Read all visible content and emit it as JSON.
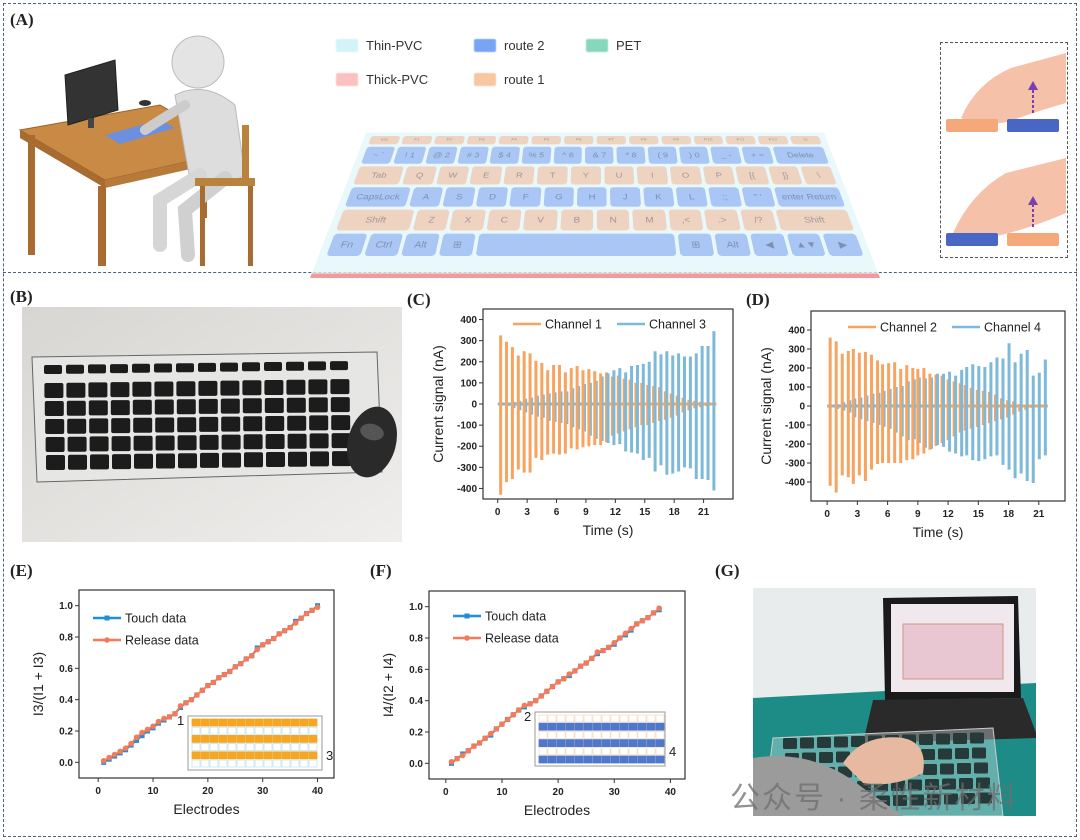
{
  "panels": {
    "a": "(A)",
    "b": "(B)",
    "c": "(C)",
    "d": "(D)",
    "e": "(E)",
    "f": "(F)",
    "g": "(G)"
  },
  "legend_a": [
    {
      "label": "Thin-PVC",
      "color": "#d4f3f8"
    },
    {
      "label": "route 2",
      "color": "#78a4f4"
    },
    {
      "label": "PET",
      "color": "#86d8bd"
    },
    {
      "label": "Thick-PVC",
      "color": "#fbc1c1"
    },
    {
      "label": "route 1",
      "color": "#f8c7a1"
    }
  ],
  "keyboard_rows": [
    {
      "route": "o",
      "keys": [
        "esc",
        "F1",
        "F2",
        "F3",
        "F4",
        "F5",
        "F6",
        "F7",
        "F8",
        "F9",
        "F10",
        "F11",
        "F12",
        "⏻"
      ]
    },
    {
      "route": "b",
      "keys": [
        "~ `",
        "! 1",
        "@ 2",
        "# 3",
        "$ 4",
        "% 5",
        "^ 6",
        "& 7",
        "* 8",
        "( 9",
        ") 0",
        "_ -",
        "+ =",
        "Delete"
      ]
    },
    {
      "route": "o",
      "keys": [
        "Tab",
        "Q",
        "W",
        "E",
        "R",
        "T",
        "Y",
        "U",
        "I",
        "O",
        "P",
        "[{",
        "]}",
        "\\"
      ]
    },
    {
      "route": "b",
      "keys": [
        "CapsLock",
        "A",
        "S",
        "D",
        "F",
        "G",
        "H",
        "J",
        "K",
        "L",
        ":;",
        "\" '",
        "enter Return"
      ]
    },
    {
      "route": "o",
      "keys": [
        "Shift",
        "Z",
        "X",
        "C",
        "V",
        "B",
        "N",
        "M",
        ",<",
        ".>",
        "/?",
        "Shift"
      ]
    },
    {
      "route": "b",
      "keys": [
        "Fn",
        "Ctrl",
        "Alt",
        "⊞",
        " ",
        "⊞",
        "Alt",
        "◀",
        "▲▼",
        "▶"
      ]
    }
  ],
  "watermark": "公众号 · 柔性新材料",
  "chart_data": [
    {
      "id": "C",
      "type": "bar",
      "subtype": "pulse-signal",
      "xlabel": "Time (s)",
      "ylabel": "Current signal (nA)",
      "xlim": [
        -1.5,
        24
      ],
      "ylim": [
        -450,
        450
      ],
      "xticks": [
        0,
        3,
        6,
        9,
        12,
        15,
        18,
        21
      ],
      "yticks": [
        -400,
        -300,
        -200,
        -100,
        0,
        100,
        200,
        300,
        400
      ],
      "legend": "top-center",
      "grid": false,
      "time": [
        0.3,
        0.9,
        1.5,
        2.1,
        2.7,
        3.3,
        3.9,
        4.5,
        5.1,
        5.7,
        6.3,
        6.9,
        7.5,
        8.1,
        8.7,
        9.3,
        9.9,
        10.5,
        11.1,
        11.7,
        12.3,
        12.9,
        13.5,
        14.1,
        14.7,
        15.3,
        15.9,
        16.5,
        17.1,
        17.7,
        18.3,
        18.9,
        19.5,
        20.1,
        20.7,
        21.3,
        21.9
      ],
      "series": [
        {
          "name": "Channel 1",
          "color": "#f7a461",
          "pos": [
            325,
            295,
            270,
            230,
            250,
            240,
            205,
            195,
            160,
            185,
            185,
            150,
            170,
            180,
            160,
            165,
            155,
            145,
            150,
            130,
            135,
            120,
            115,
            100,
            100,
            90,
            85,
            80,
            60,
            50,
            40,
            30,
            20,
            15,
            10,
            5,
            2
          ],
          "neg": [
            -430,
            -370,
            -355,
            -310,
            -325,
            -325,
            -255,
            -265,
            -240,
            -235,
            -240,
            -235,
            -210,
            -215,
            -205,
            -200,
            -195,
            -195,
            -180,
            -150,
            -140,
            -130,
            -120,
            -110,
            -100,
            -100,
            -90,
            -80,
            -75,
            -65,
            -55,
            -40,
            -30,
            -20,
            -15,
            -10,
            -5
          ]
        },
        {
          "name": "Channel 3",
          "color": "#7db9d8",
          "pos": [
            2,
            5,
            10,
            15,
            25,
            30,
            40,
            45,
            50,
            55,
            60,
            60,
            75,
            85,
            95,
            100,
            110,
            130,
            145,
            160,
            170,
            150,
            180,
            185,
            190,
            200,
            250,
            235,
            250,
            230,
            240,
            225,
            225,
            240,
            275,
            275,
            345
          ],
          "neg": [
            -5,
            -10,
            -20,
            -30,
            -40,
            -50,
            -60,
            -65,
            -80,
            -85,
            -90,
            -95,
            -110,
            -120,
            -130,
            -150,
            -165,
            -175,
            -185,
            -195,
            -190,
            -225,
            -230,
            -235,
            -265,
            -255,
            -320,
            -290,
            -335,
            -330,
            -320,
            -300,
            -305,
            -355,
            -355,
            -360,
            -410
          ]
        }
      ]
    },
    {
      "id": "D",
      "type": "bar",
      "subtype": "pulse-signal",
      "xlabel": "Time (s)",
      "ylabel": "Current signal (nA)",
      "xlim": [
        -1.6,
        23.6
      ],
      "ylim": [
        -500,
        500
      ],
      "xticks": [
        0,
        3,
        6,
        9,
        12,
        15,
        18,
        21
      ],
      "yticks": [
        -400,
        -300,
        -200,
        -100,
        0,
        100,
        200,
        300,
        400
      ],
      "legend": "top-center",
      "grid": false,
      "time": [
        0.3,
        0.9,
        1.5,
        2.1,
        2.6,
        3.2,
        3.8,
        4.4,
        5.0,
        5.5,
        6.1,
        6.7,
        7.3,
        7.9,
        8.5,
        9.0,
        9.6,
        10.2,
        10.8,
        11.4,
        12.0,
        12.6,
        13.2,
        13.7,
        14.3,
        14.9,
        15.5,
        16.1,
        16.7,
        17.3,
        17.9,
        18.5,
        19.1,
        19.7,
        20.3,
        20.9,
        21.5
      ],
      "series": [
        {
          "name": "Channel 2",
          "color": "#f7a461",
          "pos": [
            360,
            340,
            275,
            290,
            300,
            280,
            285,
            270,
            240,
            220,
            225,
            230,
            195,
            215,
            200,
            195,
            200,
            170,
            165,
            160,
            140,
            130,
            120,
            110,
            95,
            85,
            80,
            75,
            60,
            40,
            30,
            25,
            10,
            5,
            2,
            2,
            2
          ],
          "neg": [
            -420,
            -455,
            -365,
            -375,
            -410,
            -365,
            -395,
            -335,
            -305,
            -300,
            -300,
            -300,
            -300,
            -285,
            -280,
            -260,
            -250,
            -230,
            -210,
            -195,
            -180,
            -160,
            -140,
            -130,
            -120,
            -110,
            -100,
            -90,
            -80,
            -70,
            -60,
            -45,
            -30,
            -20,
            -10,
            -5,
            -3
          ]
        },
        {
          "name": "Channel 4",
          "color": "#7db9d8",
          "pos": [
            5,
            10,
            20,
            30,
            40,
            45,
            55,
            65,
            70,
            80,
            90,
            100,
            105,
            130,
            140,
            150,
            145,
            150,
            170,
            170,
            180,
            160,
            190,
            205,
            220,
            210,
            205,
            230,
            255,
            250,
            330,
            230,
            275,
            295,
            160,
            175,
            245
          ],
          "neg": [
            -5,
            -15,
            -25,
            -35,
            -60,
            -70,
            -80,
            -90,
            -100,
            -110,
            -120,
            -140,
            -160,
            -180,
            -175,
            -195,
            -220,
            -225,
            -205,
            -215,
            -240,
            -250,
            -265,
            -260,
            -285,
            -290,
            -280,
            -265,
            -260,
            -310,
            -335,
            -380,
            -355,
            -395,
            -405,
            -280,
            -260
          ]
        }
      ]
    },
    {
      "id": "E",
      "type": "line",
      "xlabel": "Electrodes",
      "ylabel": "I3/(I1 + I3)",
      "xlim": [
        -3.5,
        43
      ],
      "ylim": [
        -0.1,
        1.1
      ],
      "xticks": [
        0,
        10,
        20,
        30,
        40
      ],
      "yticks": [
        0.0,
        0.2,
        0.4,
        0.6,
        0.8,
        1.0
      ],
      "ytick_labels": [
        "0.0",
        "0.2",
        "0.4",
        "0.6",
        "0.8",
        "1.0"
      ],
      "legend": "top-left",
      "grid": false,
      "x": [
        1,
        2,
        3,
        4,
        5,
        6,
        7,
        8,
        9,
        10,
        11,
        12,
        13,
        14,
        15,
        16,
        17,
        18,
        19,
        20,
        21,
        22,
        23,
        24,
        25,
        26,
        27,
        28,
        29,
        30,
        31,
        32,
        33,
        34,
        35,
        36,
        37,
        38,
        39,
        40
      ],
      "series": [
        {
          "name": "Touch data",
          "color": "#1f8fd6",
          "marker": "square",
          "y": [
            0.0,
            0.02,
            0.04,
            0.06,
            0.08,
            0.11,
            0.14,
            0.17,
            0.2,
            0.22,
            0.25,
            0.27,
            0.29,
            0.31,
            0.35,
            0.38,
            0.4,
            0.43,
            0.46,
            0.49,
            0.51,
            0.54,
            0.56,
            0.58,
            0.61,
            0.63,
            0.66,
            0.68,
            0.73,
            0.75,
            0.77,
            0.79,
            0.82,
            0.84,
            0.86,
            0.9,
            0.92,
            0.95,
            0.97,
            1.0
          ]
        },
        {
          "name": "Release data",
          "color": "#f47a5a",
          "marker": "circle",
          "y": [
            0.01,
            0.03,
            0.05,
            0.07,
            0.09,
            0.12,
            0.16,
            0.19,
            0.21,
            0.23,
            0.26,
            0.28,
            0.29,
            0.31,
            0.36,
            0.38,
            0.4,
            0.43,
            0.46,
            0.49,
            0.51,
            0.54,
            0.56,
            0.58,
            0.61,
            0.63,
            0.66,
            0.68,
            0.72,
            0.75,
            0.77,
            0.79,
            0.82,
            0.84,
            0.86,
            0.89,
            0.92,
            0.95,
            0.97,
            0.99
          ]
        }
      ],
      "inset": {
        "start_label": "1",
        "end_label": "3",
        "route_color": "#f5a623",
        "other_color": "#bfe6f5"
      }
    },
    {
      "id": "F",
      "type": "line",
      "xlabel": "Electrodes",
      "ylabel": "I4/(I2 + I4)",
      "xlim": [
        -3,
        42.6
      ],
      "ylim": [
        -0.1,
        1.1
      ],
      "xticks": [
        0,
        10,
        20,
        30,
        40
      ],
      "yticks": [
        0.0,
        0.2,
        0.4,
        0.6,
        0.8,
        1.0
      ],
      "ytick_labels": [
        "0.0",
        "0.2",
        "0.4",
        "0.6",
        "0.8",
        "1.0"
      ],
      "legend": "top-left",
      "grid": false,
      "x": [
        1,
        2,
        3,
        4,
        5,
        6,
        7,
        8,
        9,
        10,
        11,
        12,
        13,
        14,
        15,
        16,
        17,
        18,
        19,
        20,
        21,
        22,
        23,
        24,
        25,
        26,
        27,
        28,
        29,
        30,
        31,
        32,
        33,
        34,
        35,
        36,
        37,
        38
      ],
      "series": [
        {
          "name": "Touch data",
          "color": "#1f8fd6",
          "marker": "square",
          "y": [
            0.0,
            0.03,
            0.06,
            0.08,
            0.11,
            0.13,
            0.16,
            0.18,
            0.22,
            0.25,
            0.28,
            0.31,
            0.34,
            0.36,
            0.38,
            0.4,
            0.43,
            0.46,
            0.49,
            0.52,
            0.54,
            0.56,
            0.59,
            0.62,
            0.64,
            0.67,
            0.7,
            0.72,
            0.74,
            0.76,
            0.8,
            0.82,
            0.85,
            0.89,
            0.91,
            0.93,
            0.96,
            0.98
          ]
        },
        {
          "name": "Release data",
          "color": "#f47a5a",
          "marker": "circle",
          "y": [
            0.01,
            0.03,
            0.05,
            0.08,
            0.11,
            0.13,
            0.16,
            0.19,
            0.22,
            0.25,
            0.28,
            0.31,
            0.34,
            0.37,
            0.38,
            0.4,
            0.43,
            0.46,
            0.49,
            0.52,
            0.54,
            0.57,
            0.59,
            0.62,
            0.64,
            0.67,
            0.71,
            0.72,
            0.74,
            0.77,
            0.8,
            0.83,
            0.86,
            0.89,
            0.91,
            0.93,
            0.96,
            0.99
          ]
        }
      ],
      "inset": {
        "start_label": "2",
        "end_label": "4",
        "route_color": "#4f78cc",
        "other_color": "#f8dcc0"
      }
    }
  ]
}
